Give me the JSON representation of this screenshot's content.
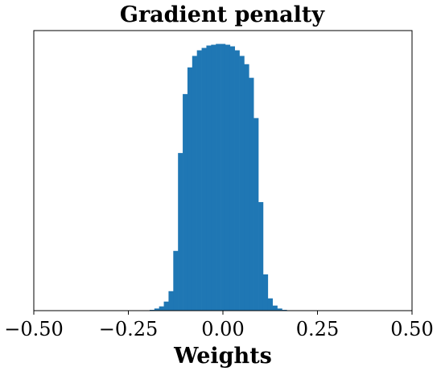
{
  "chart_data": {
    "type": "bar",
    "title": "Gradient penalty",
    "xlabel": "Weights",
    "ylabel": "",
    "xlim": [
      -0.5,
      0.5
    ],
    "ylim": [
      0,
      1.05
    ],
    "bin_width": 0.0125,
    "xticks": [
      -0.5,
      -0.25,
      0.0,
      0.25,
      0.5
    ],
    "xtick_labels": [
      "−0.50",
      "−0.25",
      "0.00",
      "0.25",
      "0.50"
    ],
    "bar_color": "#1f77b4",
    "grid": false,
    "legend": "none",
    "bins": [
      {
        "x": -0.1875,
        "y": 0.003
      },
      {
        "x": -0.175,
        "y": 0.008
      },
      {
        "x": -0.1625,
        "y": 0.016
      },
      {
        "x": -0.15,
        "y": 0.034
      },
      {
        "x": -0.1375,
        "y": 0.073
      },
      {
        "x": -0.125,
        "y": 0.224
      },
      {
        "x": -0.1125,
        "y": 0.591
      },
      {
        "x": -0.1,
        "y": 0.812
      },
      {
        "x": -0.0875,
        "y": 0.912
      },
      {
        "x": -0.075,
        "y": 0.955
      },
      {
        "x": -0.0625,
        "y": 0.976
      },
      {
        "x": -0.05,
        "y": 0.985
      },
      {
        "x": -0.0375,
        "y": 0.994
      },
      {
        "x": -0.025,
        "y": 0.997
      },
      {
        "x": -0.0125,
        "y": 1.0
      },
      {
        "x": 0.0,
        "y": 1.0
      },
      {
        "x": 0.0125,
        "y": 0.997
      },
      {
        "x": 0.025,
        "y": 0.991
      },
      {
        "x": 0.0375,
        "y": 0.976
      },
      {
        "x": 0.05,
        "y": 0.955
      },
      {
        "x": 0.0625,
        "y": 0.924
      },
      {
        "x": 0.075,
        "y": 0.873
      },
      {
        "x": 0.0875,
        "y": 0.722
      },
      {
        "x": 0.1,
        "y": 0.407
      },
      {
        "x": 0.1125,
        "y": 0.136
      },
      {
        "x": 0.125,
        "y": 0.046
      },
      {
        "x": 0.1375,
        "y": 0.019
      },
      {
        "x": 0.15,
        "y": 0.008
      },
      {
        "x": 0.1625,
        "y": 0.003
      }
    ]
  }
}
